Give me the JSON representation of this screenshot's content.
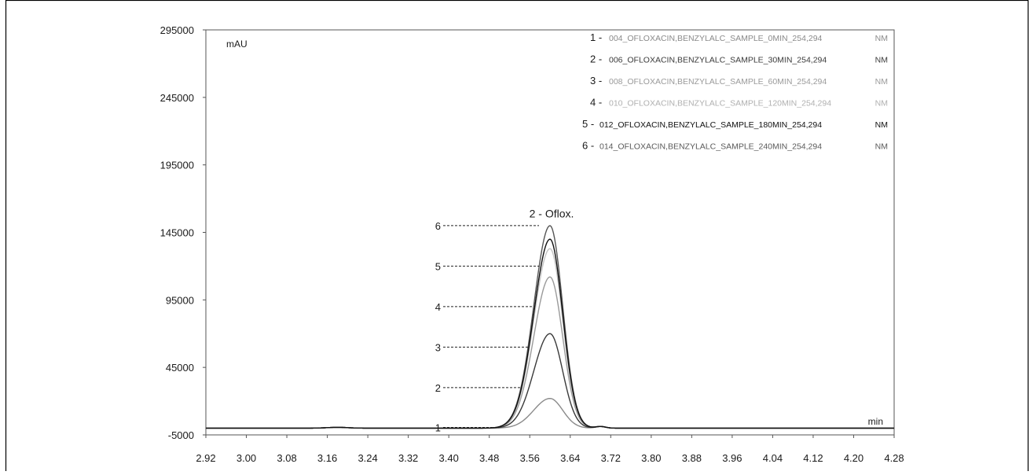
{
  "chart_data": {
    "type": "line",
    "title": "",
    "xlabel": "min",
    "ylabel": "mAU",
    "xlim": [
      2.92,
      4.28
    ],
    "ylim": [
      -5000,
      295000
    ],
    "xticks": [
      "2.92",
      "3.00",
      "3.08",
      "3.16",
      "3.24",
      "3.32",
      "3.40",
      "3.48",
      "3.56",
      "3.64",
      "3.72",
      "3.80",
      "3.88",
      "3.96",
      "4.04",
      "4.12",
      "4.20",
      "4.28"
    ],
    "yticks": [
      "295000",
      "245000",
      "195000",
      "145000",
      "95000",
      "45000",
      "-5000"
    ],
    "grid": false,
    "legend_position": "top-right",
    "peak": {
      "label": "2 - Oflox.",
      "x": 3.6
    },
    "series": [
      {
        "id": "1 -",
        "name": "004_OFLOXACIN,BENZYLALC_SAMPLE_0MIN_254,294",
        "unit": "NM",
        "color": "#8a8a8a",
        "peak_height": 22000
      },
      {
        "id": "2 -",
        "name": "006_OFLOXACIN,BENZYLALC_SAMPLE_30MIN_254,294",
        "unit": "NM",
        "color": "#3a3a3a",
        "peak_height": 70000
      },
      {
        "id": "3 -",
        "name": "008_OFLOXACIN,BENZYLALC_SAMPLE_60MIN_254,294",
        "unit": "NM",
        "color": "#9a9a9a",
        "peak_height": 112000
      },
      {
        "id": "4 -",
        "name": "010_OFLOXACIN,BENZYLALC_SAMPLE_120MIN_254,294",
        "unit": "NM",
        "color": "#c4c4c4",
        "peak_height": 133000
      },
      {
        "id": "5 -",
        "name": "012_OFLOXACIN,BENZYLALC_SAMPLE_180MIN_254,294",
        "unit": "NM",
        "color": "#111111",
        "peak_height": 140000
      },
      {
        "id": "6 -",
        "name": "014_OFLOXACIN,BENZYLALC_SAMPLE_240MIN_254,294",
        "unit": "NM",
        "color": "#555555",
        "peak_height": 150000
      }
    ],
    "pointers": [
      {
        "label": "6",
        "y": 150000
      },
      {
        "label": "5",
        "y": 120000
      },
      {
        "label": "4",
        "y": 90000
      },
      {
        "label": "3",
        "y": 60000
      },
      {
        "label": "2",
        "y": 30000
      },
      {
        "label": "1",
        "y": 500
      }
    ]
  }
}
